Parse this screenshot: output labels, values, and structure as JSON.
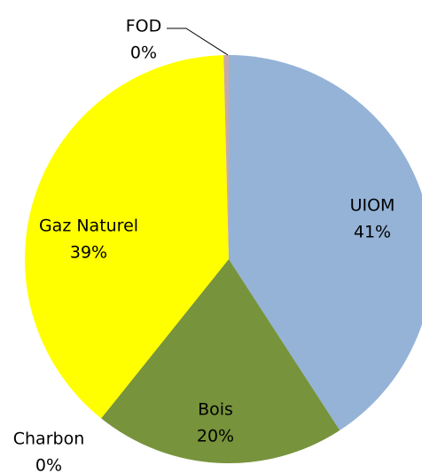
{
  "chart_data": {
    "type": "pie",
    "categories": [
      "UIOM",
      "Bois",
      "Charbon",
      "Gaz Naturel",
      "FOD"
    ],
    "values": [
      41,
      20,
      0,
      39,
      0.4
    ],
    "value_labels": [
      "41%",
      "20%",
      "0%",
      "39%",
      "0%"
    ],
    "colors": [
      "#95b3d7",
      "#77933c",
      "#3f3f3f",
      "#ffff00",
      "#c9a9a6"
    ]
  }
}
